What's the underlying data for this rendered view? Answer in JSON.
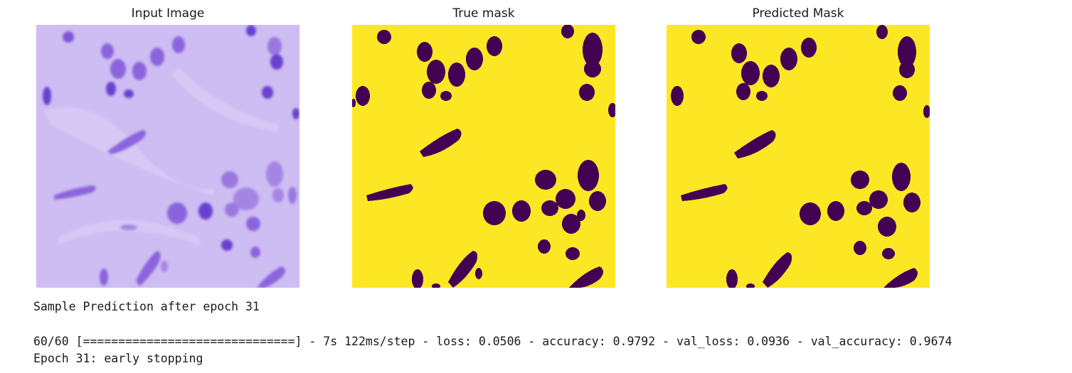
{
  "panels": {
    "input": {
      "title": "Input Image",
      "bg_color": "#cdbdf2",
      "cell_color": "#7a4fd6"
    },
    "true_mask": {
      "title": "True mask",
      "bg_color": "#fde725",
      "cell_color": "#440154"
    },
    "predicted_mask": {
      "title": "Predicted Mask",
      "bg_color": "#fde725",
      "cell_color": "#440154"
    }
  },
  "output": {
    "sample_line": "Sample Prediction after epoch 31",
    "progress_line": "60/60 [==============================] - 7s 122ms/step - loss: 0.0506 - accuracy: 0.9792 - val_loss: 0.0936 - val_accuracy: 0.9674",
    "stop_line": "Epoch 31: early stopping"
  }
}
